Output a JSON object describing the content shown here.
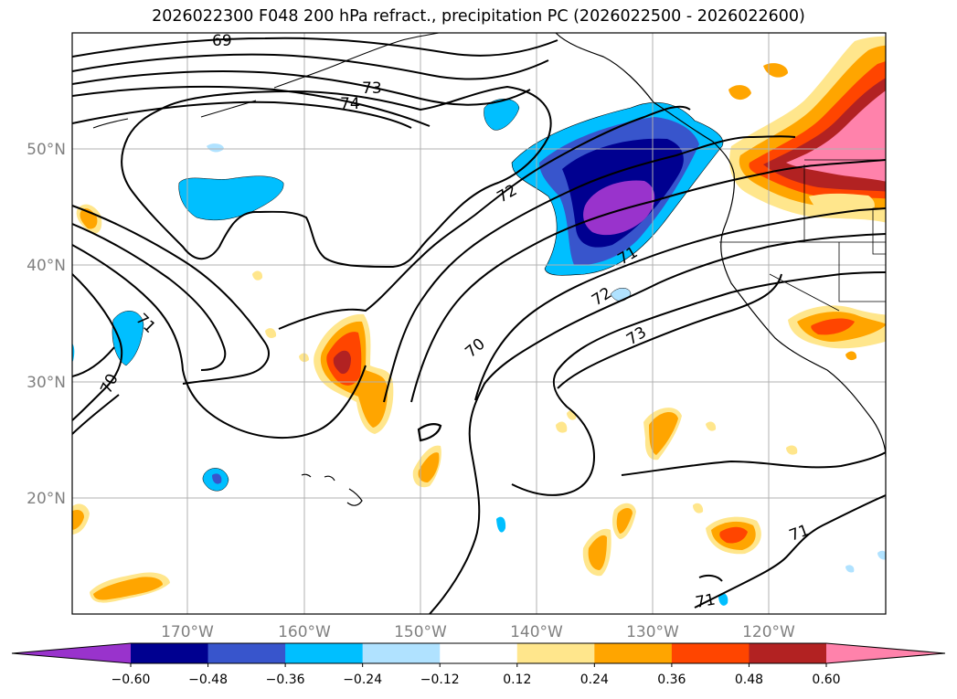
{
  "title": "2026022300 F048 200 hPa refract., precipitation PC (2026022500 - 2026022600)",
  "map": {
    "projection": "plate-carree",
    "lon_range": [
      -180,
      -107.5
    ],
    "lat_range": [
      10,
      60
    ],
    "lat_ticks": [
      {
        "value": 20,
        "label": "20°N"
      },
      {
        "value": 30,
        "label": "30°N"
      },
      {
        "value": 40,
        "label": "40°N"
      },
      {
        "value": 50,
        "label": "50°N"
      }
    ],
    "lon_ticks": [
      {
        "value": -170,
        "label": "170°W"
      },
      {
        "value": -160,
        "label": "160°W"
      },
      {
        "value": -150,
        "label": "150°W"
      },
      {
        "value": -140,
        "label": "140°W"
      },
      {
        "value": -130,
        "label": "130°W"
      },
      {
        "value": -120,
        "label": "120°W"
      }
    ],
    "gridlines": true,
    "contour_labels": [
      "69",
      "73",
      "74",
      "72",
      "71",
      "72",
      "73",
      "70",
      "71",
      "70",
      "71",
      "71"
    ],
    "shading_colors": {
      "below_-0.60": "#9933cc",
      "-0.60_-0.48": "#000090",
      "-0.48_-0.36": "#3855cc",
      "-0.36_-0.24": "#00bfff",
      "-0.24_-0.12": "#b0e2ff",
      "0.12_0.24": "#ffe68c",
      "0.24_0.36": "#ffa500",
      "0.36_0.48": "#ff4500",
      "0.48_0.60": "#b22222",
      "above_0.60": "#ff82ab"
    }
  },
  "colorbar": {
    "extend": "both",
    "colors": [
      "#9933cc",
      "#000090",
      "#3855cc",
      "#00bfff",
      "#b0e2ff",
      "#ffffff",
      "#ffe68c",
      "#ffa500",
      "#ff4500",
      "#b22222",
      "#ff82ab"
    ],
    "tick_labels": [
      "−0.60",
      "−0.48",
      "−0.36",
      "−0.24",
      "−0.12",
      "0.12",
      "0.24",
      "0.36",
      "0.48",
      "0.60"
    ]
  }
}
